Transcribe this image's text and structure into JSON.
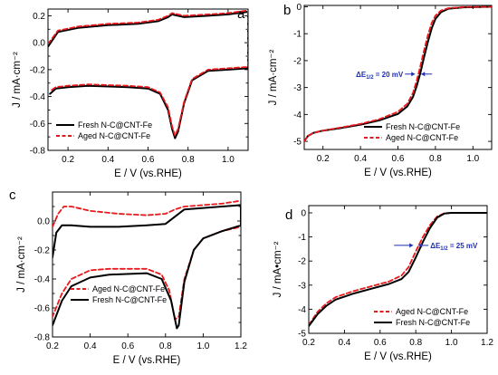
{
  "colors": {
    "fresh": "#000000",
    "aged": "#e8191c",
    "annotation": "#1f2fb0"
  },
  "chart_data": [
    {
      "id": "a",
      "panel_label": "a",
      "type": "line",
      "xlabel": "E / V (vs.RHE)",
      "ylabel": "J / mA·cm⁻²",
      "xlim": [
        0.1,
        1.1
      ],
      "ylim": [
        -0.8,
        0.25
      ],
      "xticks": [
        0.2,
        0.4,
        0.6,
        0.8,
        1.0
      ],
      "xtick_labels": [
        "0.2",
        "0.4",
        "0.6",
        "0.8",
        "1.0"
      ],
      "yticks": [
        -0.8,
        -0.7,
        -0.6,
        -0.5,
        -0.4,
        -0.3,
        -0.2,
        -0.1,
        0.0,
        0.1,
        0.2
      ],
      "ytick_labels": [
        "-0.8",
        "",
        "-0.6",
        "",
        "-0.4",
        "",
        "-0.2",
        "",
        "0.0",
        "",
        "0.2"
      ],
      "legend": "bottom-left",
      "series": [
        {
          "name": "Fresh N-C@CNT-Fe",
          "color": "fresh",
          "dash": false,
          "values": [
            [
              0.1,
              -0.03
            ],
            [
              0.15,
              0.08
            ],
            [
              0.25,
              0.11
            ],
            [
              0.4,
              0.13
            ],
            [
              0.55,
              0.14
            ],
            [
              0.65,
              0.16
            ],
            [
              0.7,
              0.19
            ],
            [
              0.72,
              0.21
            ],
            [
              0.78,
              0.19
            ],
            [
              0.9,
              0.2
            ],
            [
              1.0,
              0.21
            ],
            [
              1.1,
              0.23
            ],
            [
              1.1,
              -0.19
            ],
            [
              1.0,
              -0.2
            ],
            [
              0.9,
              -0.21
            ],
            [
              0.82,
              -0.28
            ],
            [
              0.78,
              -0.45
            ],
            [
              0.75,
              -0.66
            ],
            [
              0.735,
              -0.71
            ],
            [
              0.72,
              -0.64
            ],
            [
              0.7,
              -0.5
            ],
            [
              0.66,
              -0.38
            ],
            [
              0.6,
              -0.34
            ],
            [
              0.5,
              -0.33
            ],
            [
              0.3,
              -0.32
            ],
            [
              0.2,
              -0.33
            ],
            [
              0.14,
              -0.34
            ],
            [
              0.11,
              -0.38
            ]
          ]
        },
        {
          "name": "Aged N-C@CNT-Fe",
          "color": "aged",
          "dash": true,
          "values": [
            [
              0.1,
              -0.01
            ],
            [
              0.15,
              0.09
            ],
            [
              0.25,
              0.12
            ],
            [
              0.4,
              0.14
            ],
            [
              0.55,
              0.15
            ],
            [
              0.65,
              0.17
            ],
            [
              0.7,
              0.2
            ],
            [
              0.72,
              0.22
            ],
            [
              0.78,
              0.2
            ],
            [
              0.9,
              0.21
            ],
            [
              1.0,
              0.22
            ],
            [
              1.1,
              0.24
            ],
            [
              1.1,
              -0.18
            ],
            [
              1.0,
              -0.19
            ],
            [
              0.9,
              -0.2
            ],
            [
              0.82,
              -0.27
            ],
            [
              0.78,
              -0.44
            ],
            [
              0.75,
              -0.64
            ],
            [
              0.735,
              -0.69
            ],
            [
              0.72,
              -0.62
            ],
            [
              0.7,
              -0.48
            ],
            [
              0.66,
              -0.37
            ],
            [
              0.6,
              -0.33
            ],
            [
              0.5,
              -0.32
            ],
            [
              0.3,
              -0.31
            ],
            [
              0.2,
              -0.32
            ],
            [
              0.14,
              -0.33
            ],
            [
              0.11,
              -0.36
            ]
          ]
        }
      ]
    },
    {
      "id": "b",
      "panel_label": "b",
      "type": "line",
      "xlabel": "E / V (vs.RHE)",
      "ylabel": "J / mA·cm⁻²",
      "xlim": [
        0.1,
        1.1
      ],
      "ylim": [
        -5.3,
        0.05
      ],
      "xticks": [
        0.2,
        0.4,
        0.6,
        0.8,
        1.0
      ],
      "xtick_labels": [
        "0.2",
        "0.4",
        "0.6",
        "0.8",
        "1.0"
      ],
      "yticks": [
        -5,
        -4,
        -3,
        -2,
        -1,
        0
      ],
      "ytick_labels": [
        "-5",
        "-4",
        "-3",
        "-2",
        "-1",
        "0"
      ],
      "legend": "bottom-right",
      "annotation": {
        "text": "ΔE",
        "sub": "1/2",
        "suffix": " = 20 mV",
        "at": [
          0.705,
          -2.5
        ],
        "arrow_y": -2.5
      },
      "series": [
        {
          "name": "Fresh N-C@CNT-Fe",
          "color": "fresh",
          "dash": false,
          "values": [
            [
              0.1,
              -5.0
            ],
            [
              0.12,
              -4.8
            ],
            [
              0.15,
              -4.68
            ],
            [
              0.2,
              -4.6
            ],
            [
              0.3,
              -4.5
            ],
            [
              0.4,
              -4.38
            ],
            [
              0.5,
              -4.22
            ],
            [
              0.6,
              -3.98
            ],
            [
              0.65,
              -3.7
            ],
            [
              0.68,
              -3.35
            ],
            [
              0.7,
              -2.95
            ],
            [
              0.72,
              -2.45
            ],
            [
              0.74,
              -1.85
            ],
            [
              0.76,
              -1.3
            ],
            [
              0.78,
              -0.8
            ],
            [
              0.8,
              -0.45
            ],
            [
              0.83,
              -0.2
            ],
            [
              0.87,
              -0.07
            ],
            [
              0.95,
              -0.02
            ],
            [
              1.1,
              0.0
            ]
          ]
        },
        {
          "name": "Aged N-C@CNT-Fe",
          "color": "aged",
          "dash": true,
          "values": [
            [
              0.1,
              -5.0
            ],
            [
              0.12,
              -4.8
            ],
            [
              0.15,
              -4.68
            ],
            [
              0.2,
              -4.6
            ],
            [
              0.3,
              -4.48
            ],
            [
              0.4,
              -4.35
            ],
            [
              0.5,
              -4.18
            ],
            [
              0.6,
              -3.9
            ],
            [
              0.65,
              -3.6
            ],
            [
              0.68,
              -3.2
            ],
            [
              0.7,
              -2.75
            ],
            [
              0.72,
              -2.2
            ],
            [
              0.74,
              -1.6
            ],
            [
              0.76,
              -1.05
            ],
            [
              0.78,
              -0.6
            ],
            [
              0.8,
              -0.33
            ],
            [
              0.83,
              -0.14
            ],
            [
              0.87,
              -0.05
            ],
            [
              0.95,
              -0.01
            ],
            [
              1.1,
              0.0
            ]
          ]
        }
      ]
    },
    {
      "id": "c",
      "panel_label": "c",
      "type": "line",
      "xlabel": "E / V (vs.RHE)",
      "ylabel": "J / mA·cm⁻²",
      "xlim": [
        0.2,
        1.2
      ],
      "ylim": [
        -0.8,
        0.2
      ],
      "xticks": [
        0.2,
        0.4,
        0.6,
        0.8,
        1.0,
        1.2
      ],
      "xtick_labels": [
        "0.2",
        "0.4",
        "0.6",
        "0.8",
        "1.0",
        "1.2"
      ],
      "yticks": [
        -0.8,
        -0.7,
        -0.6,
        -0.5,
        -0.4,
        -0.3,
        -0.2,
        -0.1,
        0.0,
        0.1,
        0.2
      ],
      "ytick_labels": [
        "-0.8",
        "",
        "-0.6",
        "",
        "-0.4",
        "",
        "-0.2",
        "",
        "0.0",
        "",
        ""
      ],
      "legend": "bottom-left",
      "series": [
        {
          "name": "Aged N-C@CNT-Fe",
          "color": "aged",
          "dash": true,
          "values": [
            [
              0.2,
              -0.04
            ],
            [
              0.23,
              0.05
            ],
            [
              0.26,
              0.1
            ],
            [
              0.3,
              0.1
            ],
            [
              0.4,
              0.07
            ],
            [
              0.55,
              0.05
            ],
            [
              0.7,
              0.04
            ],
            [
              0.8,
              0.05
            ],
            [
              0.85,
              0.08
            ],
            [
              0.9,
              0.1
            ],
            [
              1.0,
              0.11
            ],
            [
              1.1,
              0.12
            ],
            [
              1.2,
              0.14
            ],
            [
              1.2,
              -0.04
            ],
            [
              1.1,
              -0.07
            ],
            [
              1.0,
              -0.12
            ],
            [
              0.95,
              -0.2
            ],
            [
              0.9,
              -0.4
            ],
            [
              0.87,
              -0.66
            ],
            [
              0.85,
              -0.68
            ],
            [
              0.82,
              -0.48
            ],
            [
              0.78,
              -0.37
            ],
            [
              0.7,
              -0.33
            ],
            [
              0.5,
              -0.33
            ],
            [
              0.4,
              -0.34
            ],
            [
              0.3,
              -0.4
            ],
            [
              0.25,
              -0.5
            ],
            [
              0.2,
              -0.66
            ]
          ]
        },
        {
          "name": "Fresh N-C@CNT-Fe",
          "color": "fresh",
          "dash": false,
          "values": [
            [
              0.2,
              -0.25
            ],
            [
              0.22,
              -0.08
            ],
            [
              0.25,
              -0.03
            ],
            [
              0.3,
              -0.03
            ],
            [
              0.4,
              -0.04
            ],
            [
              0.55,
              -0.04
            ],
            [
              0.7,
              -0.03
            ],
            [
              0.8,
              -0.02
            ],
            [
              0.85,
              0.03
            ],
            [
              0.9,
              0.08
            ],
            [
              1.0,
              0.09
            ],
            [
              1.1,
              0.1
            ],
            [
              1.2,
              0.11
            ],
            [
              1.2,
              -0.03
            ],
            [
              1.1,
              -0.07
            ],
            [
              1.0,
              -0.12
            ],
            [
              0.95,
              -0.2
            ],
            [
              0.9,
              -0.42
            ],
            [
              0.87,
              -0.72
            ],
            [
              0.86,
              -0.74
            ],
            [
              0.83,
              -0.55
            ],
            [
              0.78,
              -0.4
            ],
            [
              0.7,
              -0.36
            ],
            [
              0.5,
              -0.37
            ],
            [
              0.4,
              -0.39
            ],
            [
              0.3,
              -0.45
            ],
            [
              0.25,
              -0.55
            ],
            [
              0.2,
              -0.72
            ]
          ]
        }
      ]
    },
    {
      "id": "d",
      "panel_label": "d",
      "type": "line",
      "xlabel": "E / V (vs.RHE)",
      "ylabel": "J / mA•cm⁻²",
      "xlim": [
        0.2,
        1.2
      ],
      "ylim": [
        -5.0,
        0.3
      ],
      "xticks": [
        0.2,
        0.4,
        0.6,
        0.8,
        1.0,
        1.2
      ],
      "xtick_labels": [
        "0.2",
        "0.4",
        "0.6",
        "0.8",
        "1.0",
        "1.2"
      ],
      "yticks": [
        -5,
        -4,
        -3,
        -2,
        -1,
        0
      ],
      "ytick_labels": [
        "-5",
        "-4",
        "-3",
        "-2",
        "-1",
        "0"
      ],
      "legend": "bottom-right",
      "annotation": {
        "text": "ΔE",
        "sub": "1/2",
        "suffix": " = 25 mV",
        "at": [
          0.8,
          -1.35
        ],
        "arrow_y": -1.35
      },
      "series": [
        {
          "name": "Aged N-C@CNT-Fe",
          "color": "aged",
          "dash": true,
          "values": [
            [
              0.2,
              -4.65
            ],
            [
              0.25,
              -4.1
            ],
            [
              0.3,
              -3.75
            ],
            [
              0.35,
              -3.5
            ],
            [
              0.45,
              -3.25
            ],
            [
              0.55,
              -3.05
            ],
            [
              0.65,
              -2.85
            ],
            [
              0.72,
              -2.6
            ],
            [
              0.76,
              -2.25
            ],
            [
              0.8,
              -1.6
            ],
            [
              0.84,
              -1.0
            ],
            [
              0.88,
              -0.5
            ],
            [
              0.92,
              -0.15
            ],
            [
              0.96,
              -0.02
            ],
            [
              1.0,
              0.0
            ],
            [
              1.2,
              0.0
            ]
          ]
        },
        {
          "name": "Fresh N-C@CNT-Fe",
          "color": "fresh",
          "dash": false,
          "values": [
            [
              0.2,
              -4.7
            ],
            [
              0.25,
              -4.2
            ],
            [
              0.3,
              -3.85
            ],
            [
              0.35,
              -3.6
            ],
            [
              0.45,
              -3.35
            ],
            [
              0.55,
              -3.15
            ],
            [
              0.65,
              -2.95
            ],
            [
              0.72,
              -2.75
            ],
            [
              0.76,
              -2.45
            ],
            [
              0.8,
              -1.85
            ],
            [
              0.84,
              -1.2
            ],
            [
              0.88,
              -0.62
            ],
            [
              0.92,
              -0.2
            ],
            [
              0.96,
              -0.03
            ],
            [
              1.0,
              0.0
            ],
            [
              1.2,
              0.0
            ]
          ]
        }
      ]
    }
  ]
}
